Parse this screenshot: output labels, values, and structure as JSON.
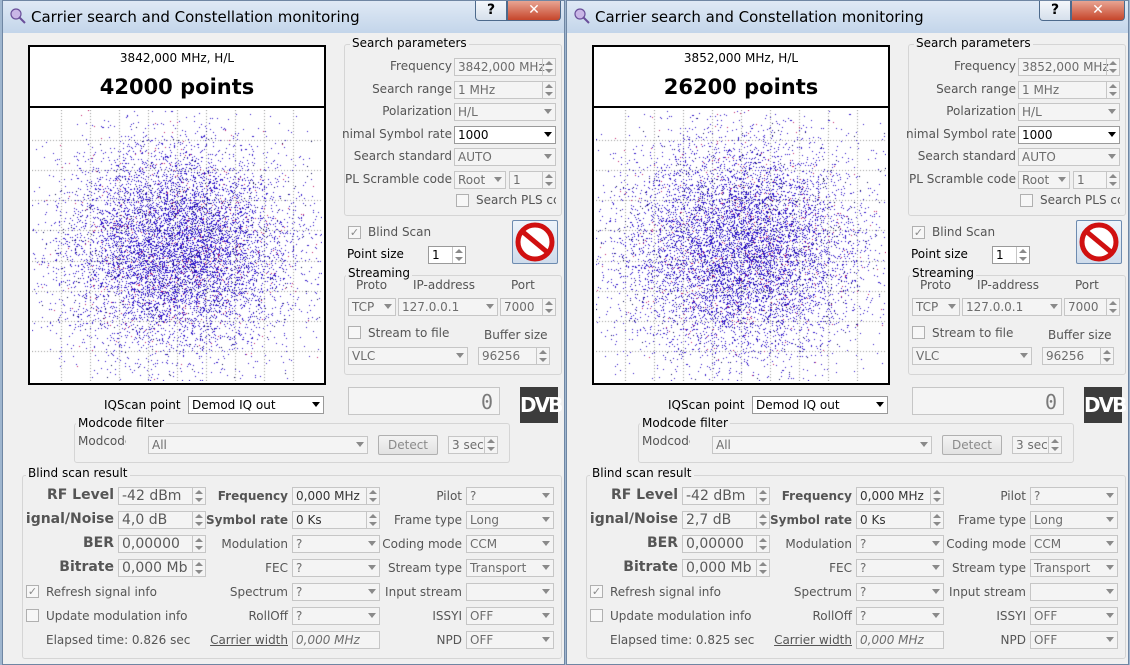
{
  "windows": [
    {
      "title": "Carrier search and Constellation monitoring",
      "help_label": "?",
      "close_label": "✕",
      "plot": {
        "freq_label": "3842,000 MHz, H/L",
        "points_label": "42000 points",
        "point_count": 42000,
        "spread": 56,
        "dot_color": "#2b12c8"
      },
      "search": {
        "title": "Search parameters",
        "frequency_label": "Frequency",
        "frequency_value": "3842,000 MHz",
        "range_label": "Search range",
        "range_value": "1 MHz",
        "polarization_label": "Polarization",
        "polarization_value": "H/L",
        "symrate_label": "nimal Symbol rate",
        "symrate_value": "1000",
        "standard_label": "Search standard",
        "standard_value": "AUTO",
        "scramble_label": "PL Scramble code",
        "scramble_value": "Root",
        "scramble_num": "1",
        "pls_label": "Search PLS cc",
        "blind_label": "Blind Scan",
        "blind_check": "✓",
        "pointsize_label": "Point size",
        "pointsize_value": "1"
      },
      "streaming": {
        "title": "Streaming",
        "proto_label": "Proto",
        "ip_label": "IP-address",
        "port_label": "Port",
        "proto_value": "TCP",
        "ip_value": "127.0.0.1",
        "port_value": "7000",
        "file_label": "Stream to file",
        "buffer_label": "Buffer size",
        "player_value": "VLC",
        "buffer_value": "96256"
      },
      "counter_value": "0",
      "dvb_label": "DVB",
      "iq": {
        "label": "IQScan point",
        "value": "Demod IQ out"
      },
      "modcode": {
        "title": "Modcode filter",
        "label": "Modcode",
        "value": "All",
        "detect_label": "Detect",
        "time_value": "3 sec"
      },
      "result": {
        "title": "Blind scan result",
        "rf_label": "RF Level",
        "rf_value": "-42 dBm",
        "snr_label": "ignal/Noise",
        "snr_value": "4,0 dB",
        "ber_label": "BER",
        "ber_value": "0,00000",
        "bitrate_label": "Bitrate",
        "bitrate_value": "0,000 Mb",
        "freq_label": "Frequency",
        "freq_value": "0,000 MHz",
        "sr_label": "Symbol rate",
        "sr_value": "0 Ks",
        "mod_label": "Modulation",
        "mod_value": "?",
        "fec_label": "FEC",
        "fec_value": "?",
        "spectrum_label": "Spectrum",
        "spectrum_value": "?",
        "rolloff_label": "RollOff",
        "rolloff_value": "?",
        "cw_label": "Carrier width",
        "cw_value": "0,000 MHz",
        "pilot_label": "Pilot",
        "pilot_value": "?",
        "frame_label": "Frame type",
        "frame_value": "Long",
        "coding_label": "Coding mode",
        "coding_value": "CCM",
        "stype_label": "Stream type",
        "stype_value": "Transport",
        "istream_label": "Input stream",
        "istream_value": "",
        "issyi_label": "ISSYI",
        "issyi_value": "OFF",
        "npd_label": "NPD",
        "npd_value": "OFF",
        "refresh_label": "Refresh signal info",
        "refresh_check": "✓",
        "update_label": "Update modulation info",
        "elapsed_label": "Elapsed time: 0.826 sec"
      }
    },
    {
      "title": "Carrier search and Constellation monitoring",
      "help_label": "?",
      "close_label": "✕",
      "plot": {
        "freq_label": "3852,000 MHz, H/L",
        "points_label": "26200 points",
        "point_count": 26200,
        "spread": 60,
        "dot_color": "#2b12c8"
      },
      "search": {
        "title": "Search parameters",
        "frequency_label": "Frequency",
        "frequency_value": "3852,000 MHz",
        "range_label": "Search range",
        "range_value": "1 MHz",
        "polarization_label": "Polarization",
        "polarization_value": "H/L",
        "symrate_label": "nimal Symbol rate",
        "symrate_value": "1000",
        "standard_label": "Search standard",
        "standard_value": "AUTO",
        "scramble_label": "PL Scramble code",
        "scramble_value": "Root",
        "scramble_num": "1",
        "pls_label": "Search PLS cc",
        "blind_label": "Blind Scan",
        "blind_check": "✓",
        "pointsize_label": "Point size",
        "pointsize_value": "1"
      },
      "streaming": {
        "title": "Streaming",
        "proto_label": "Proto",
        "ip_label": "IP-address",
        "port_label": "Port",
        "proto_value": "TCP",
        "ip_value": "127.0.0.1",
        "port_value": "7000",
        "file_label": "Stream to file",
        "buffer_label": "Buffer size",
        "player_value": "VLC",
        "buffer_value": "96256"
      },
      "counter_value": "0",
      "dvb_label": "DVB",
      "iq": {
        "label": "IQScan point",
        "value": "Demod IQ out"
      },
      "modcode": {
        "title": "Modcode filter",
        "label": "Modcode",
        "value": "All",
        "detect_label": "Detect",
        "time_value": "3 sec"
      },
      "result": {
        "title": "Blind scan result",
        "rf_label": "RF Level",
        "rf_value": "-42 dBm",
        "snr_label": "ignal/Noise",
        "snr_value": "2,7 dB",
        "ber_label": "BER",
        "ber_value": "0,00000",
        "bitrate_label": "Bitrate",
        "bitrate_value": "0,000 Mb",
        "freq_label": "Frequency",
        "freq_value": "0,000 MHz",
        "sr_label": "Symbol rate",
        "sr_value": "0 Ks",
        "mod_label": "Modulation",
        "mod_value": "?",
        "fec_label": "FEC",
        "fec_value": "?",
        "spectrum_label": "Spectrum",
        "spectrum_value": "?",
        "rolloff_label": "RollOff",
        "rolloff_value": "?",
        "cw_label": "Carrier width",
        "cw_value": "0,000 MHz",
        "pilot_label": "Pilot",
        "pilot_value": "?",
        "frame_label": "Frame type",
        "frame_value": "Long",
        "coding_label": "Coding mode",
        "coding_value": "CCM",
        "stype_label": "Stream type",
        "stype_value": "Transport",
        "istream_label": "Input stream",
        "istream_value": "",
        "issyi_label": "ISSYI",
        "issyi_value": "OFF",
        "npd_label": "NPD",
        "npd_value": "OFF",
        "refresh_label": "Refresh signal info",
        "refresh_check": "✓",
        "update_label": "Update modulation info",
        "elapsed_label": "Elapsed time: 0.825 sec"
      }
    }
  ]
}
